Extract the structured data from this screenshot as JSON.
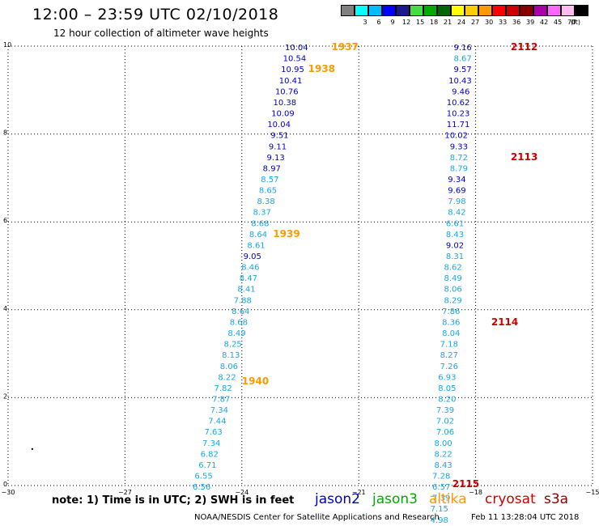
{
  "header": {
    "title": "12:00 – 23:59 UTC 02/10/2018",
    "subtitle": "12 hour collection of altimeter wave heights"
  },
  "color_scale": {
    "unit": "(ft)",
    "swatches": [
      {
        "color": "#808080",
        "label": ""
      },
      {
        "color": "#00ffff",
        "label": "3"
      },
      {
        "color": "#00bbff",
        "label": "6"
      },
      {
        "color": "#0000ff",
        "label": "9"
      },
      {
        "color": "#1a1a8c",
        "label": "12"
      },
      {
        "color": "#44dd44",
        "label": "15"
      },
      {
        "color": "#00aa00",
        "label": "18"
      },
      {
        "color": "#006600",
        "label": "21"
      },
      {
        "color": "#ffff00",
        "label": "24"
      },
      {
        "color": "#ffcc00",
        "label": "27"
      },
      {
        "color": "#ff9900",
        "label": "30"
      },
      {
        "color": "#ff0000",
        "label": "33"
      },
      {
        "color": "#cc0000",
        "label": "36"
      },
      {
        "color": "#880000",
        "label": "39"
      },
      {
        "color": "#aa00aa",
        "label": "42"
      },
      {
        "color": "#ff66ff",
        "label": "45"
      },
      {
        "color": "#ffbbee",
        "label": "70"
      },
      {
        "color": "#000000",
        "label": ""
      }
    ]
  },
  "footer": {
    "note": "note:  1) Time is in UTC;  2) SWH is in feet",
    "legend": [
      {
        "name": "jason2",
        "color": "#0000cc"
      },
      {
        "name": "jason3",
        "color": "#00aa00"
      },
      {
        "name": "altika",
        "color": "#ff9900"
      },
      {
        "name": "cryosat",
        "color": "#cc0000"
      },
      {
        "name": "s3a",
        "color": "#880000"
      }
    ],
    "credit": "NOAA/NESDIS Center for Satellite Applications and Research",
    "generated": "Feb 11 13:28:04 UTC 2018"
  },
  "chart_data": {
    "type": "scatter",
    "title": "12:00 – 23:59 UTC 02/10/2018",
    "xlabel": "",
    "ylabel": "",
    "xlim": [
      -30,
      -15
    ],
    "ylim": [
      0,
      10
    ],
    "x_ticks": [
      "−30",
      "−27",
      "−24",
      "−21",
      "−18",
      "−15"
    ],
    "y_ticks": [
      "0",
      "2",
      "4",
      "6",
      "8",
      "10"
    ],
    "grid": "dotted",
    "colors": {
      "light": "#1aa6e6",
      "dark": "#0000cc"
    },
    "stray_points": [
      {
        "x": -29.4,
        "y": 0.85
      }
    ],
    "track_labels": [
      {
        "text": "1937",
        "x": -21.7,
        "y": 9.98,
        "color": "#ff9900"
      },
      {
        "text": "1938",
        "x": -22.3,
        "y": 9.48,
        "color": "#ff9900"
      },
      {
        "text": "1939",
        "x": -23.2,
        "y": 5.73,
        "color": "#ff9900"
      },
      {
        "text": "1940",
        "x": -24.0,
        "y": 2.38,
        "color": "#ff9900"
      },
      {
        "text": "2112",
        "x": -17.1,
        "y": 9.98,
        "color": "#cc0000"
      },
      {
        "text": "2113",
        "x": -17.1,
        "y": 7.48,
        "color": "#cc0000"
      },
      {
        "text": "2114",
        "x": -17.6,
        "y": 3.72,
        "color": "#cc0000"
      },
      {
        "text": "2115",
        "x": -18.6,
        "y": 0.04,
        "color": "#cc0000"
      }
    ],
    "series": [
      {
        "points": [
          {
            "x": -22.3,
            "y": 9.98,
            "v": "10.04",
            "c": "dark"
          },
          {
            "x": -22.35,
            "y": 9.73,
            "v": "10.54",
            "c": "dark"
          },
          {
            "x": -22.4,
            "y": 9.48,
            "v": "10.95",
            "c": "dark"
          },
          {
            "x": -22.45,
            "y": 9.23,
            "v": "10.41",
            "c": "dark"
          },
          {
            "x": -22.55,
            "y": 8.98,
            "v": "10.76",
            "c": "dark"
          },
          {
            "x": -22.6,
            "y": 8.73,
            "v": "10.38",
            "c": "dark"
          },
          {
            "x": -22.65,
            "y": 8.48,
            "v": "10.09",
            "c": "dark"
          },
          {
            "x": -22.75,
            "y": 8.23,
            "v": "10.04",
            "c": "dark"
          },
          {
            "x": -22.8,
            "y": 7.98,
            "v": "9.51",
            "c": "dark"
          },
          {
            "x": -22.85,
            "y": 7.73,
            "v": "9.11",
            "c": "dark"
          },
          {
            "x": -22.9,
            "y": 7.48,
            "v": "9.13",
            "c": "dark"
          },
          {
            "x": -23.0,
            "y": 7.23,
            "v": "8.97",
            "c": "dark"
          },
          {
            "x": -23.05,
            "y": 6.98,
            "v": "8.57",
            "c": "light"
          },
          {
            "x": -23.1,
            "y": 6.73,
            "v": "8.65",
            "c": "light"
          },
          {
            "x": -23.15,
            "y": 6.48,
            "v": "8.38",
            "c": "light"
          },
          {
            "x": -23.25,
            "y": 6.23,
            "v": "8.37",
            "c": "light"
          },
          {
            "x": -23.3,
            "y": 5.98,
            "v": "8.68",
            "c": "light"
          },
          {
            "x": -23.35,
            "y": 5.73,
            "v": "8.64",
            "c": "light"
          },
          {
            "x": -23.4,
            "y": 5.48,
            "v": "8.61",
            "c": "light"
          },
          {
            "x": -23.5,
            "y": 5.23,
            "v": "9.05",
            "c": "dark"
          },
          {
            "x": -23.55,
            "y": 4.98,
            "v": "8.46",
            "c": "light"
          },
          {
            "x": -23.6,
            "y": 4.73,
            "v": "8.47",
            "c": "light"
          },
          {
            "x": -23.65,
            "y": 4.48,
            "v": "8.41",
            "c": "light"
          },
          {
            "x": -23.75,
            "y": 4.23,
            "v": "7.88",
            "c": "light"
          },
          {
            "x": -23.8,
            "y": 3.98,
            "v": "8.64",
            "c": "light"
          },
          {
            "x": -23.85,
            "y": 3.73,
            "v": "8.68",
            "c": "light"
          },
          {
            "x": -23.9,
            "y": 3.48,
            "v": "8.49",
            "c": "light"
          },
          {
            "x": -24.0,
            "y": 3.23,
            "v": "8.25",
            "c": "light"
          },
          {
            "x": -24.05,
            "y": 2.98,
            "v": "8.13",
            "c": "light"
          },
          {
            "x": -24.1,
            "y": 2.73,
            "v": "8.06",
            "c": "light"
          },
          {
            "x": -24.15,
            "y": 2.48,
            "v": "8.22",
            "c": "light"
          },
          {
            "x": -24.25,
            "y": 2.23,
            "v": "7.82",
            "c": "light"
          },
          {
            "x": -24.3,
            "y": 1.98,
            "v": "7.87",
            "c": "light"
          },
          {
            "x": -24.35,
            "y": 1.73,
            "v": "7.34",
            "c": "light"
          },
          {
            "x": -24.4,
            "y": 1.48,
            "v": "7.44",
            "c": "light"
          },
          {
            "x": -24.5,
            "y": 1.23,
            "v": "7.63",
            "c": "light"
          },
          {
            "x": -24.55,
            "y": 0.98,
            "v": "7.34",
            "c": "light"
          },
          {
            "x": -24.6,
            "y": 0.73,
            "v": "6.82",
            "c": "light"
          },
          {
            "x": -24.65,
            "y": 0.48,
            "v": "6.71",
            "c": "light"
          },
          {
            "x": -24.75,
            "y": 0.23,
            "v": "6.55",
            "c": "light"
          },
          {
            "x": -24.8,
            "y": -0.02,
            "v": "6.56",
            "c": "light"
          }
        ]
      },
      {
        "points": [
          {
            "x": -18.1,
            "y": 9.98,
            "v": "9.16",
            "c": "dark"
          },
          {
            "x": -18.1,
            "y": 9.73,
            "v": "8.67",
            "c": "light"
          },
          {
            "x": -18.1,
            "y": 9.48,
            "v": "9.57",
            "c": "dark"
          },
          {
            "x": -18.1,
            "y": 9.23,
            "v": "10.43",
            "c": "dark"
          },
          {
            "x": -18.15,
            "y": 8.98,
            "v": "9.46",
            "c": "dark"
          },
          {
            "x": -18.15,
            "y": 8.73,
            "v": "10.62",
            "c": "dark"
          },
          {
            "x": -18.15,
            "y": 8.48,
            "v": "10.23",
            "c": "dark"
          },
          {
            "x": -18.15,
            "y": 8.23,
            "v": "11.71",
            "c": "dark"
          },
          {
            "x": -18.2,
            "y": 7.98,
            "v": "10.02",
            "c": "dark"
          },
          {
            "x": -18.2,
            "y": 7.73,
            "v": "9.33",
            "c": "dark"
          },
          {
            "x": -18.2,
            "y": 7.48,
            "v": "8.72",
            "c": "light"
          },
          {
            "x": -18.2,
            "y": 7.23,
            "v": "8.79",
            "c": "light"
          },
          {
            "x": -18.25,
            "y": 6.98,
            "v": "9.34",
            "c": "dark"
          },
          {
            "x": -18.25,
            "y": 6.73,
            "v": "9.69",
            "c": "dark"
          },
          {
            "x": -18.25,
            "y": 6.48,
            "v": "7.98",
            "c": "light"
          },
          {
            "x": -18.25,
            "y": 6.23,
            "v": "8.42",
            "c": "light"
          },
          {
            "x": -18.3,
            "y": 5.98,
            "v": "6.61",
            "c": "light"
          },
          {
            "x": -18.3,
            "y": 5.73,
            "v": "8.43",
            "c": "light"
          },
          {
            "x": -18.3,
            "y": 5.48,
            "v": "9.02",
            "c": "dark"
          },
          {
            "x": -18.3,
            "y": 5.23,
            "v": "8.31",
            "c": "light"
          },
          {
            "x": -18.35,
            "y": 4.98,
            "v": "8.62",
            "c": "light"
          },
          {
            "x": -18.35,
            "y": 4.73,
            "v": "8.49",
            "c": "light"
          },
          {
            "x": -18.35,
            "y": 4.48,
            "v": "8.06",
            "c": "light"
          },
          {
            "x": -18.35,
            "y": 4.23,
            "v": "8.29",
            "c": "light"
          },
          {
            "x": -18.4,
            "y": 3.98,
            "v": "7.86",
            "c": "light"
          },
          {
            "x": -18.4,
            "y": 3.73,
            "v": "8.36",
            "c": "light"
          },
          {
            "x": -18.4,
            "y": 3.48,
            "v": "8.04",
            "c": "light"
          },
          {
            "x": -18.45,
            "y": 3.23,
            "v": "7.18",
            "c": "light"
          },
          {
            "x": -18.45,
            "y": 2.98,
            "v": "8.27",
            "c": "light"
          },
          {
            "x": -18.45,
            "y": 2.73,
            "v": "7.26",
            "c": "light"
          },
          {
            "x": -18.5,
            "y": 2.48,
            "v": "6.93",
            "c": "light"
          },
          {
            "x": -18.5,
            "y": 2.23,
            "v": "8.05",
            "c": "light"
          },
          {
            "x": -18.5,
            "y": 1.98,
            "v": "8.20",
            "c": "light"
          },
          {
            "x": -18.55,
            "y": 1.73,
            "v": "7.39",
            "c": "light"
          },
          {
            "x": -18.55,
            "y": 1.48,
            "v": "7.02",
            "c": "light"
          },
          {
            "x": -18.55,
            "y": 1.23,
            "v": "7.06",
            "c": "light"
          },
          {
            "x": -18.6,
            "y": 0.98,
            "v": "8.00",
            "c": "light"
          },
          {
            "x": -18.6,
            "y": 0.73,
            "v": "8.22",
            "c": "light"
          },
          {
            "x": -18.6,
            "y": 0.48,
            "v": "8.43",
            "c": "light"
          },
          {
            "x": -18.65,
            "y": 0.23,
            "v": "7.28",
            "c": "light"
          },
          {
            "x": -18.65,
            "y": -0.02,
            "v": "6.57",
            "c": "light"
          },
          {
            "x": -18.65,
            "y": -0.27,
            "v": "7.39",
            "c": "light"
          },
          {
            "x": -18.7,
            "y": -0.52,
            "v": "7.15",
            "c": "light"
          },
          {
            "x": -18.7,
            "y": -0.77,
            "v": "4.98",
            "c": "light"
          }
        ]
      }
    ]
  }
}
